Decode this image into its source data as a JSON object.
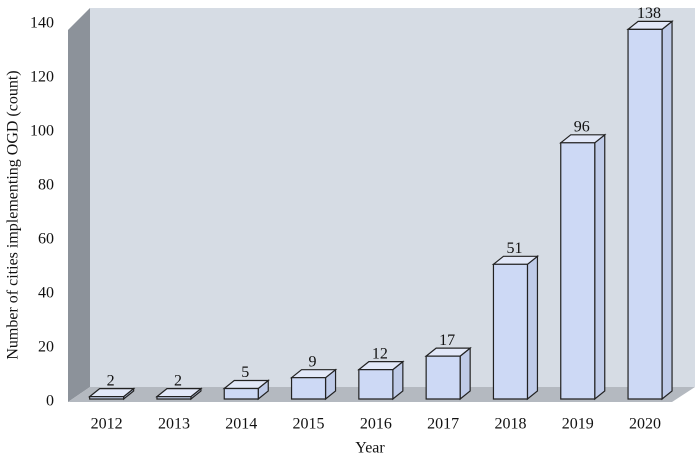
{
  "chart_data": {
    "type": "bar3d",
    "xlabel": "Year",
    "ylabel": "Number of cities implementing OGD (count)",
    "categories": [
      "2012",
      "2013",
      "2014",
      "2015",
      "2016",
      "2017",
      "2018",
      "2019",
      "2020"
    ],
    "values": [
      2,
      2,
      5,
      9,
      12,
      17,
      51,
      96,
      138
    ],
    "color": "#cdd9f5",
    "ylim": [
      0,
      140
    ],
    "yticks": [
      0,
      20,
      40,
      60,
      80,
      100,
      120,
      140
    ]
  }
}
